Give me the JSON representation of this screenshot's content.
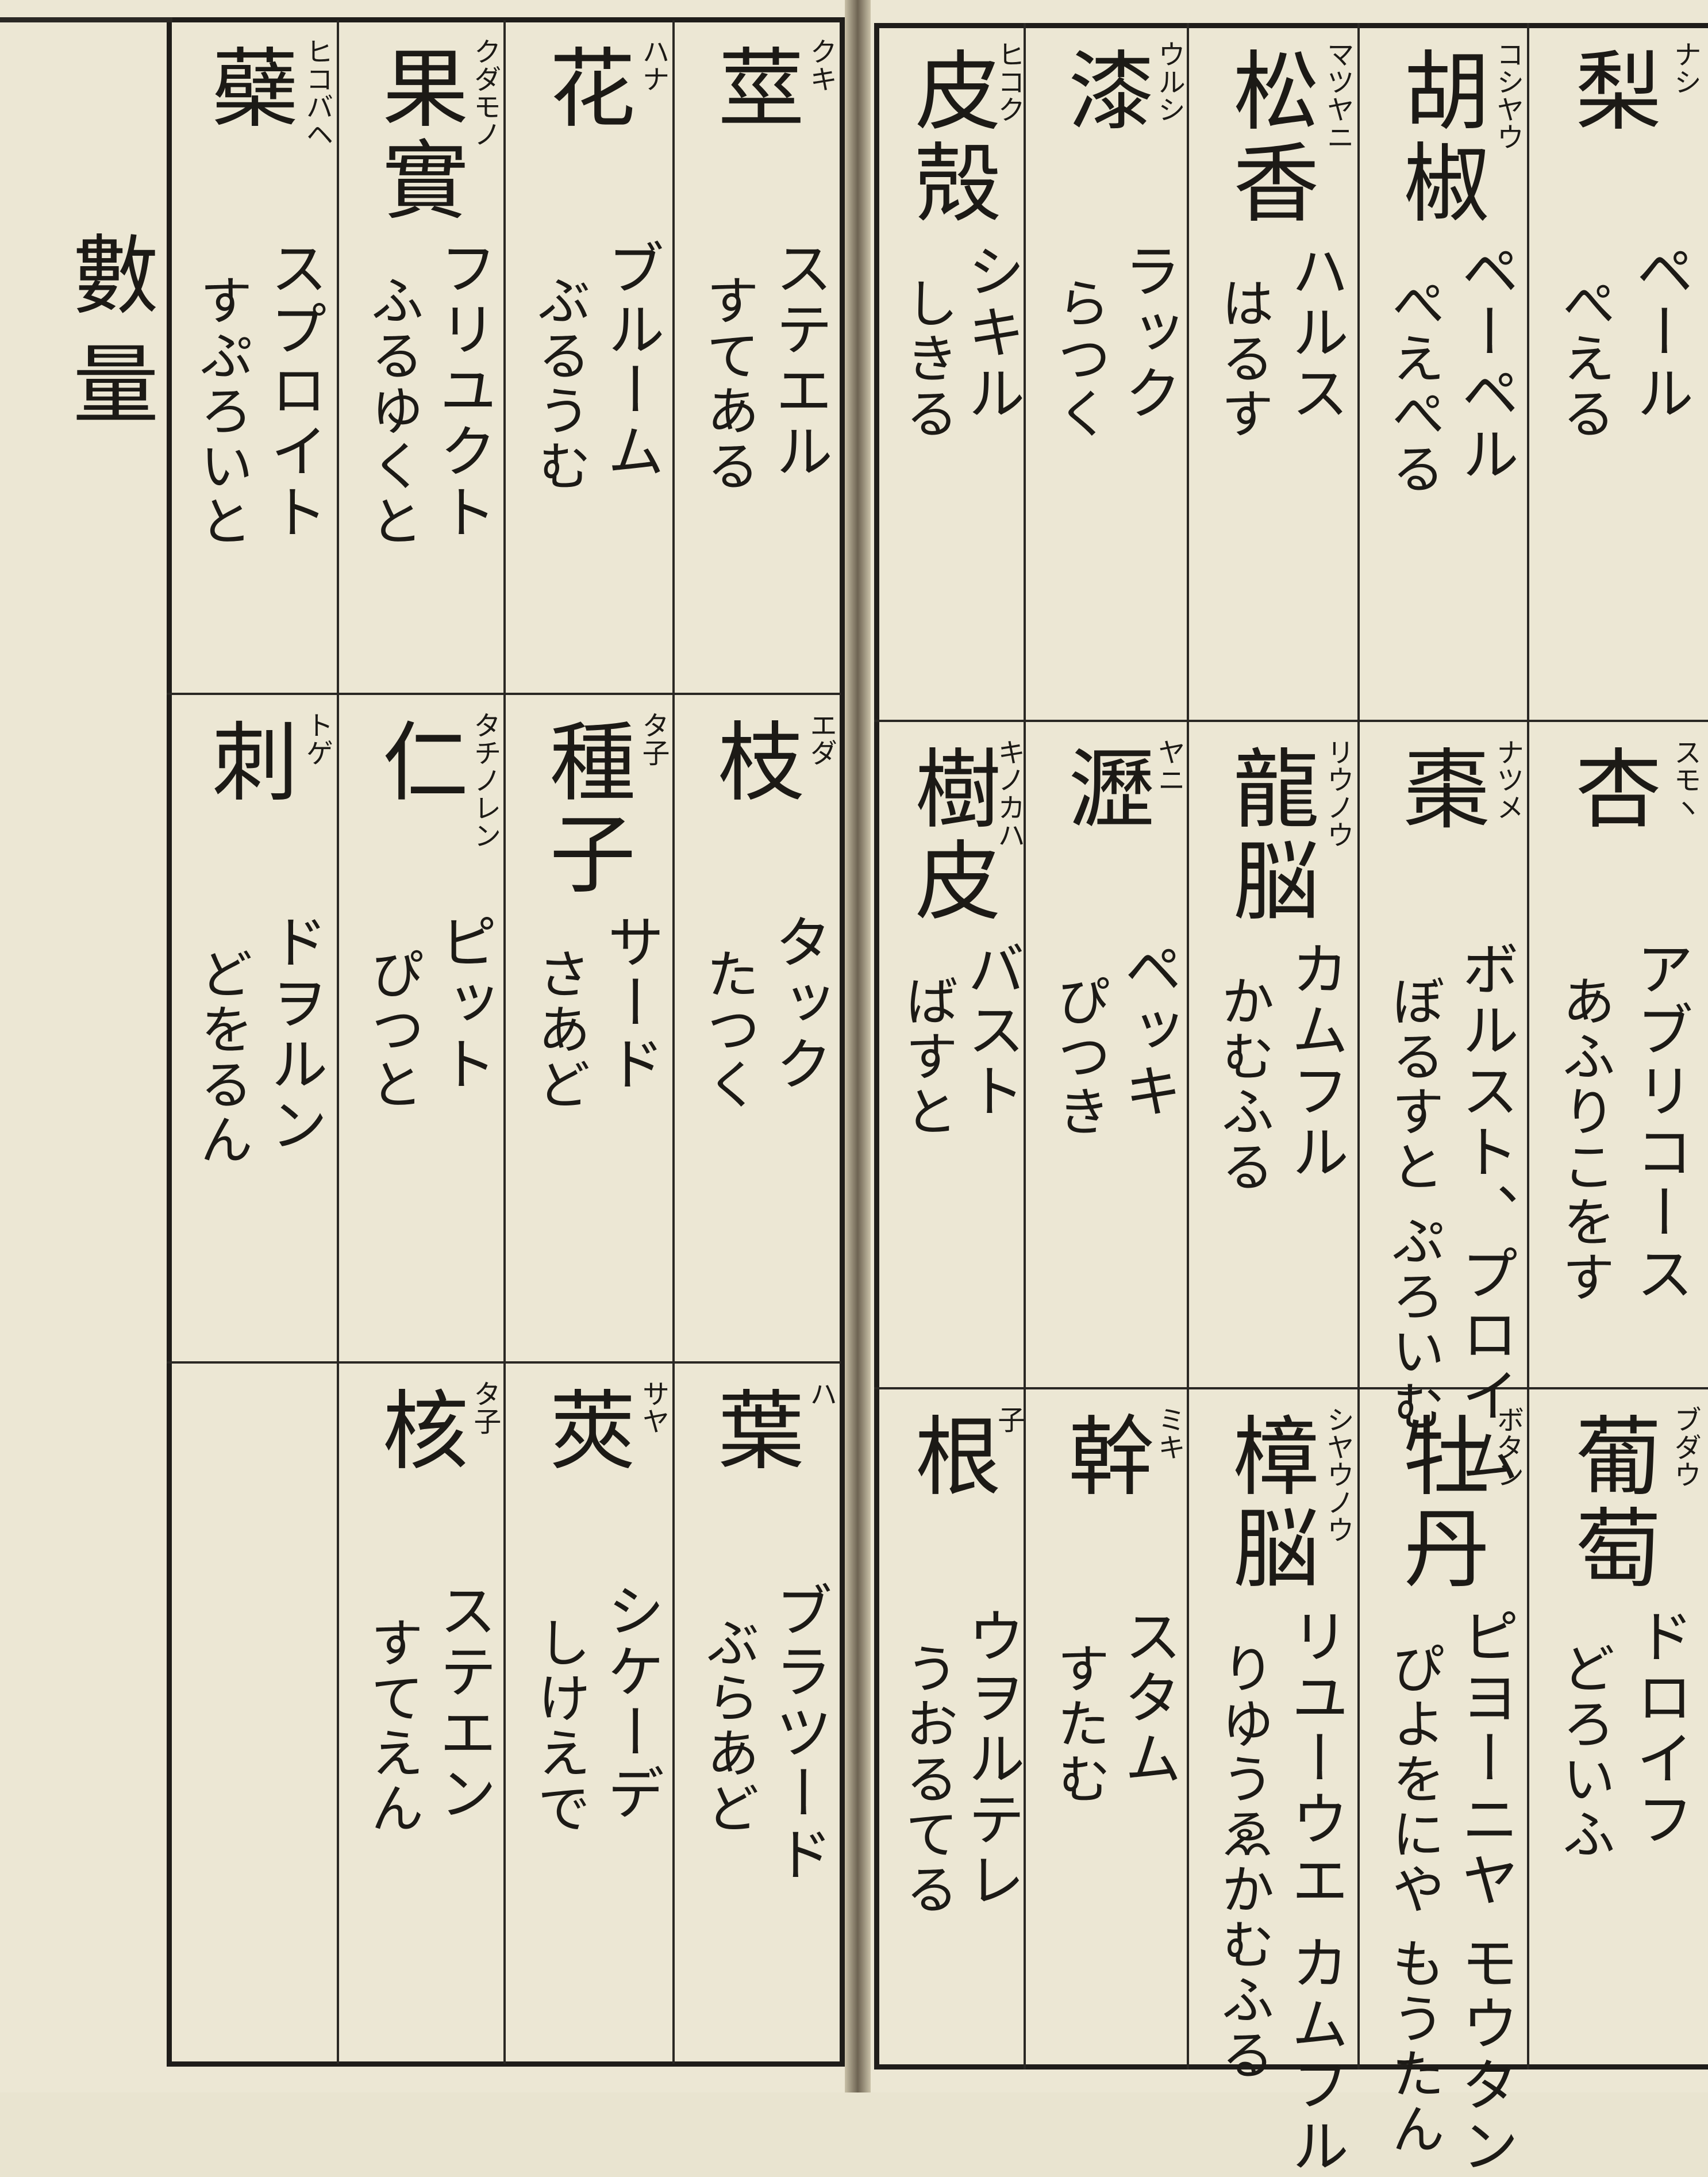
{
  "left_page": {
    "section": "數量",
    "rows": [
      [
        {
          "headword": "莖",
          "reading": "クキ",
          "dutch": "ステエル",
          "kana": "すてある"
        },
        {
          "headword": "花",
          "reading": "ハナ",
          "dutch": "ブルーム",
          "kana": "ぶるうむ"
        },
        {
          "headword": "果實",
          "reading": "クダモノ",
          "dutch": "フリユクト",
          "kana": "ふるゆくと"
        },
        {
          "headword": "蘗",
          "reading": "ヒコバヘ",
          "dutch": "スプロイト",
          "kana": "すぷろいと"
        }
      ],
      [
        {
          "headword": "枝",
          "reading": "エダ",
          "dutch": "タック",
          "kana": "たつく"
        },
        {
          "headword": "種子",
          "reading": "タ子",
          "dutch": "サード",
          "kana": "さあど"
        },
        {
          "headword": "仁",
          "reading": "タチノレン",
          "dutch": "ピット",
          "kana": "ぴつと"
        },
        {
          "headword": "刺",
          "reading": "トゲ",
          "dutch": "ドヲルン",
          "kana": "どをるん"
        }
      ],
      [
        {
          "headword": "葉",
          "reading": "ハ",
          "dutch": "ブラツード",
          "kana": "ぶらあど"
        },
        {
          "headword": "莢",
          "reading": "サヤ",
          "dutch": "シケーデ",
          "kana": "しけえで"
        },
        {
          "headword": "核",
          "reading": "タ子",
          "dutch": "ステエン",
          "kana": "すてえん"
        }
      ]
    ]
  },
  "right_page": {
    "rows": [
      [
        {
          "headword": "梨",
          "reading": "ナシ",
          "dutch": "ペール",
          "kana": "ぺえる"
        },
        {
          "headword": "胡椒",
          "reading": "コシヤウ",
          "dutch": "ペーペル",
          "kana": "ぺえぺる"
        },
        {
          "headword": "松香",
          "reading": "マツヤニ",
          "dutch": "ハルス",
          "kana": "はるす"
        },
        {
          "headword": "漆",
          "reading": "ウルシ",
          "dutch": "ラック",
          "kana": "らつく"
        },
        {
          "headword": "皮殻",
          "reading": "ヒコク",
          "dutch": "シキル",
          "kana": "しきる"
        }
      ],
      [
        {
          "headword": "杏",
          "reading": "スモヽ",
          "dutch": "アブリコース",
          "kana": "あふりこをす"
        },
        {
          "headword": "棗",
          "reading": "ナツメ",
          "dutch": "ボルスト、プロイム",
          "kana": "ぼるすと ぷろいむ"
        },
        {
          "headword": "龍脳",
          "reading": "リウノウ",
          "dutch": "カムフル",
          "kana": "かむふる"
        },
        {
          "headword": "瀝",
          "reading": "ヤニ",
          "dutch": "ペッキ",
          "kana": "ぴつき"
        },
        {
          "headword": "樹皮",
          "reading": "キノカハ",
          "dutch": "バスト",
          "kana": "ばすと"
        }
      ],
      [
        {
          "headword": "葡萄",
          "reading": "ブダウ",
          "dutch": "ドロイフ",
          "kana": "どろいふ"
        },
        {
          "headword": "牡丹",
          "reading": "ボタン",
          "dutch": "ピヨーニヤ モウタン",
          "kana": "ぴよをにや もうたん"
        },
        {
          "headword": "樟脳",
          "reading": "シヤウノウ",
          "dutch": "リユーウエ カムフル",
          "kana": "りゆうゑかむふる"
        },
        {
          "headword": "幹",
          "reading": "ミキ",
          "dutch": "スタム",
          "kana": "すたむ"
        },
        {
          "headword": "根",
          "reading": "子",
          "dutch": "ウヲルテレ",
          "kana": "うおるてる"
        }
      ]
    ]
  }
}
